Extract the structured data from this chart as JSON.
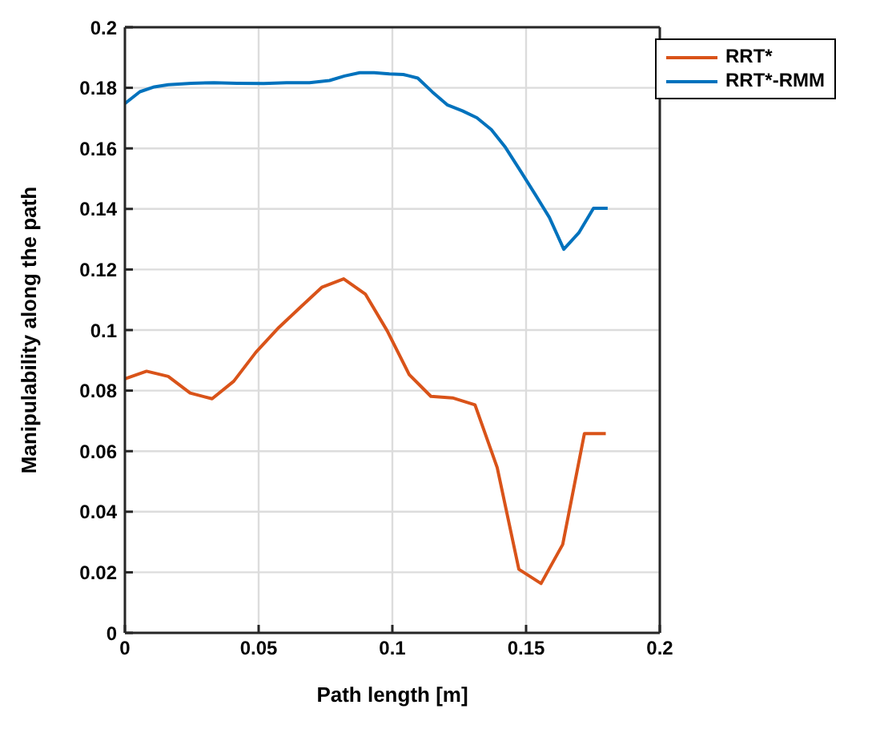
{
  "chart_data": {
    "type": "line",
    "xlabel": "Path length [m]",
    "ylabel": "Manipulability along the path",
    "xlim": [
      0,
      0.2
    ],
    "xticks": [
      0,
      0.05,
      0.1,
      0.15,
      0.2
    ],
    "ylim": [
      0,
      0.2
    ],
    "yticks": [
      0,
      0.02,
      0.04,
      0.06,
      0.08,
      0.1,
      0.12,
      0.14,
      0.16,
      0.18,
      0.2
    ],
    "grid": true,
    "legend": "top right",
    "marker": "none",
    "line_style": "solid",
    "series": [
      {
        "name": "RRT*",
        "color": "#d95319",
        "x": [
          0,
          0.0081,
          0.0162,
          0.0244,
          0.0326,
          0.0407,
          0.049,
          0.0575,
          0.0657,
          0.0736,
          0.0818,
          0.0899,
          0.0981,
          0.1063,
          0.1144,
          0.1225,
          0.1309,
          0.1392,
          0.1473,
          0.1556,
          0.1637,
          0.1718,
          0.1798
        ],
        "values": [
          0.0839,
          0.0864,
          0.0847,
          0.0792,
          0.0773,
          0.0831,
          0.0927,
          0.1008,
          0.1076,
          0.1141,
          0.1169,
          0.1119,
          0.0997,
          0.0853,
          0.0781,
          0.0776,
          0.0753,
          0.0546,
          0.021,
          0.0163,
          0.0292,
          0.0658,
          0.0658
        ]
      },
      {
        "name": "RRT*-RMM",
        "color": "#0072bd",
        "x": [
          0,
          0.0056,
          0.011,
          0.0162,
          0.0248,
          0.0333,
          0.0419,
          0.0519,
          0.0604,
          0.069,
          0.0765,
          0.0821,
          0.0878,
          0.0932,
          0.0989,
          0.1041,
          0.1095,
          0.115,
          0.1205,
          0.1262,
          0.1316,
          0.137,
          0.1423,
          0.148,
          0.1534,
          0.1587,
          0.1641,
          0.1697,
          0.1752,
          0.1805
        ],
        "values": [
          0.1748,
          0.1787,
          0.1803,
          0.181,
          0.1815,
          0.1817,
          0.1815,
          0.1814,
          0.1817,
          0.1817,
          0.1824,
          0.1839,
          0.185,
          0.185,
          0.1846,
          0.1844,
          0.1832,
          0.1786,
          0.1744,
          0.1724,
          0.1701,
          0.1662,
          0.1603,
          0.1524,
          0.1448,
          0.1372,
          0.1267,
          0.1321,
          0.1402,
          0.1402
        ]
      }
    ]
  }
}
